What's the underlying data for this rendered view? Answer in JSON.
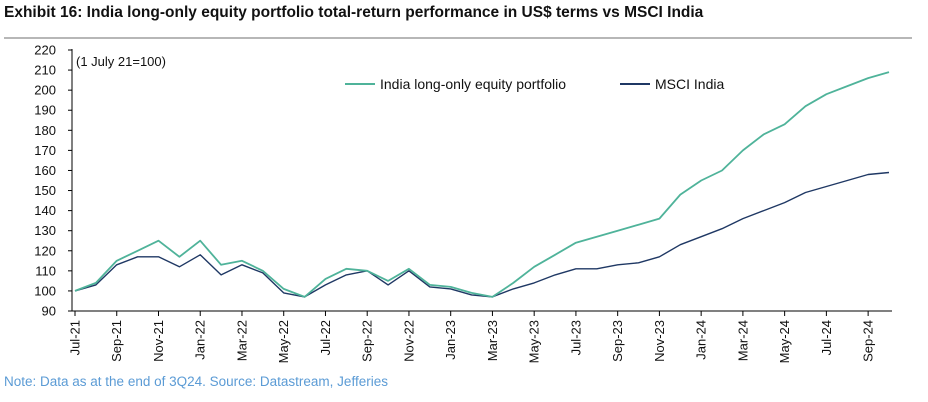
{
  "header": {
    "title": "Exhibit 16: India long-only equity portfolio total-return performance in US$ terms vs MSCI India"
  },
  "footer": {
    "note": "Note: Data as at the end of 3Q24. Source: Datastream, Jefferies"
  },
  "chart_data": {
    "type": "line",
    "title": "Exhibit 16: India long-only equity portfolio total-return performance in US$ terms vs MSCI India",
    "annotation": "(1 July 21=100)",
    "ylim": [
      90,
      220
    ],
    "y_ticks": [
      90,
      100,
      110,
      120,
      130,
      140,
      150,
      160,
      170,
      180,
      190,
      200,
      210,
      220
    ],
    "x_tick_labels": [
      "Jul-21",
      "Sep-21",
      "Nov-21",
      "Jan-22",
      "Mar-22",
      "May-22",
      "Jul-22",
      "Sep-22",
      "Nov-22",
      "Jan-23",
      "Mar-23",
      "May-23",
      "Jul-23",
      "Sep-23",
      "Nov-23",
      "Jan-24",
      "Mar-24",
      "May-24",
      "Jul-24",
      "Sep-24"
    ],
    "grid": false,
    "legend_position": "top-right",
    "x": [
      "2021-07",
      "2021-08",
      "2021-09",
      "2021-10",
      "2021-11",
      "2021-12",
      "2022-01",
      "2022-02",
      "2022-03",
      "2022-04",
      "2022-05",
      "2022-06",
      "2022-07",
      "2022-08",
      "2022-09",
      "2022-10",
      "2022-11",
      "2022-12",
      "2023-01",
      "2023-02",
      "2023-03",
      "2023-04",
      "2023-05",
      "2023-06",
      "2023-07",
      "2023-08",
      "2023-09",
      "2023-10",
      "2023-11",
      "2023-12",
      "2024-01",
      "2024-02",
      "2024-03",
      "2024-04",
      "2024-05",
      "2024-06",
      "2024-07",
      "2024-08",
      "2024-09",
      "2024-10"
    ],
    "series": [
      {
        "name": "India long-only equity portfolio",
        "color": "#4fb39a",
        "values": [
          100,
          104,
          115,
          120,
          125,
          117,
          125,
          113,
          115,
          110,
          101,
          97,
          106,
          111,
          110,
          105,
          111,
          103,
          102,
          99,
          97,
          104,
          112,
          118,
          124,
          127,
          130,
          133,
          136,
          148,
          155,
          160,
          170,
          178,
          183,
          192,
          198,
          202,
          206,
          209
        ]
      },
      {
        "name": "MSCI India",
        "color": "#1f3864",
        "values": [
          100,
          103,
          113,
          117,
          117,
          112,
          118,
          108,
          113,
          109,
          99,
          97,
          103,
          108,
          110,
          103,
          110,
          102,
          101,
          98,
          97,
          101,
          104,
          108,
          111,
          111,
          113,
          114,
          117,
          123,
          127,
          131,
          136,
          140,
          144,
          149,
          152,
          155,
          158,
          159
        ]
      }
    ]
  }
}
